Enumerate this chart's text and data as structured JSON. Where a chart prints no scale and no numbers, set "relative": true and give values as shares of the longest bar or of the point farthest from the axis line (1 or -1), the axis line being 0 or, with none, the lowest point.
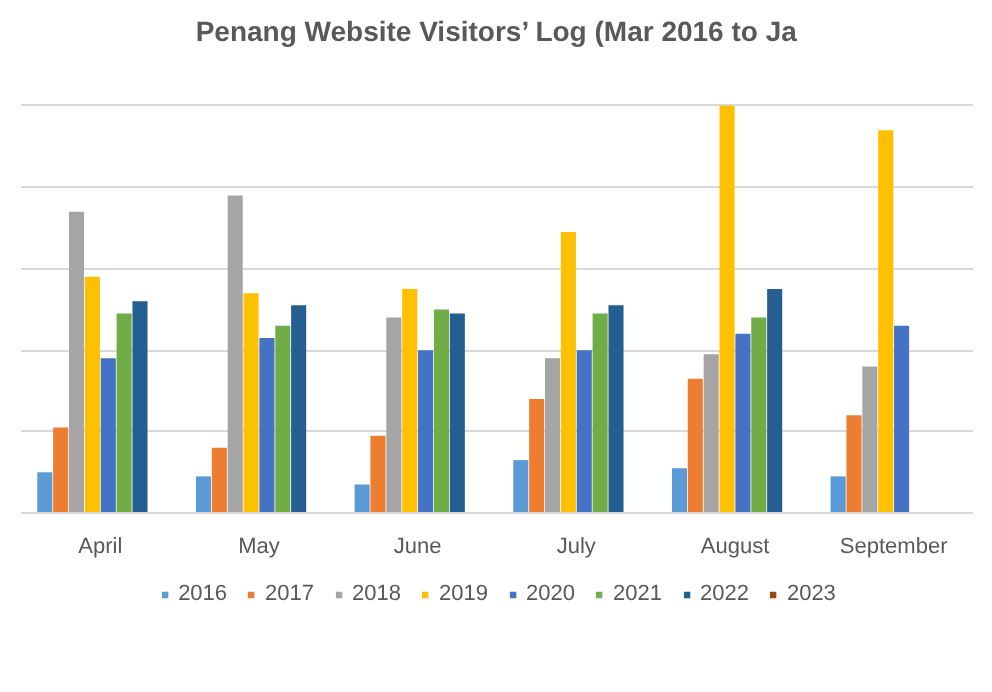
{
  "chart_data": {
    "type": "bar",
    "title": "Penang Website Visitors’ Log (Mar 2016 to Ja",
    "relative": true,
    "grid": "y",
    "legend": "bottom",
    "categories": [
      "April",
      "May",
      "June",
      "July",
      "August",
      "September"
    ],
    "series": [
      {
        "name": "2016",
        "color": "#5b9bd5",
        "values": [
          0.1,
          0.09,
          0.07,
          0.13,
          0.11,
          0.09
        ]
      },
      {
        "name": "2017",
        "color": "#ed7d31",
        "values": [
          0.21,
          0.16,
          0.19,
          0.28,
          0.33,
          0.24
        ]
      },
      {
        "name": "2018",
        "color": "#a5a5a5",
        "values": [
          0.74,
          0.78,
          0.48,
          0.38,
          0.39,
          0.36
        ]
      },
      {
        "name": "2019",
        "color": "#ffc000",
        "values": [
          0.58,
          0.54,
          0.55,
          0.69,
          1,
          0.94
        ]
      },
      {
        "name": "2020",
        "color": "#4472c4",
        "values": [
          0.38,
          0.43,
          0.4,
          0.4,
          0.44,
          0.46
        ]
      },
      {
        "name": "2021",
        "color": "#70ad47",
        "values": [
          0.49,
          0.46,
          0.5,
          0.49,
          0.48,
          null
        ]
      },
      {
        "name": "2022",
        "color": "#255e91",
        "values": [
          0.52,
          0.51,
          0.49,
          0.51,
          0.55,
          null
        ]
      },
      {
        "name": "2023",
        "color": "#9e480e",
        "values": [
          null,
          null,
          null,
          null,
          null,
          null
        ]
      }
    ]
  }
}
